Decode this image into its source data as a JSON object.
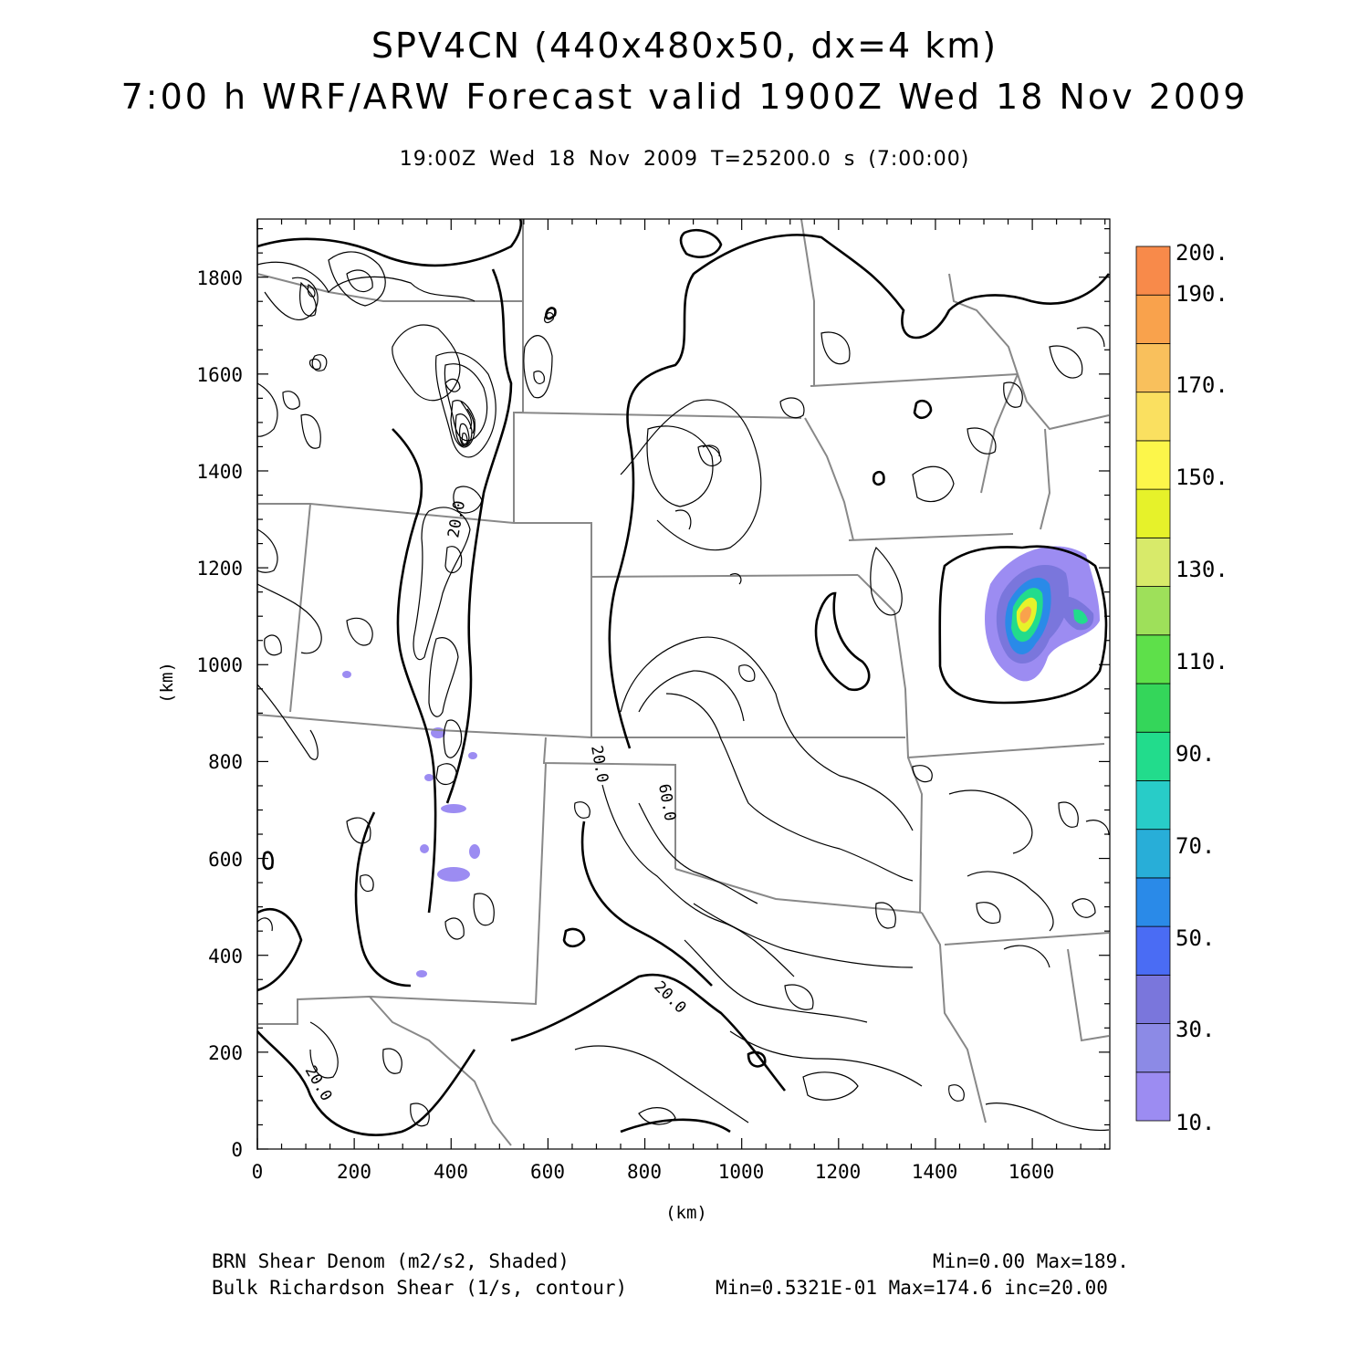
{
  "header": {
    "title": "SPV4CN (440x480x50, dx=4 km)",
    "subtitle": "7:00 h WRF/ARW Forecast valid 1900Z Wed 18 Nov 2009",
    "time_line": "19:00Z Wed 18 Nov 2009     T=25200.0 s (7:00:00)"
  },
  "map": {
    "xlabel": "(km)",
    "ylabel": "(km)",
    "xlim": [
      0,
      1760
    ],
    "ylim": [
      0,
      1920
    ],
    "x_ticks": [
      "0",
      "200",
      "400",
      "600",
      "800",
      "1000",
      "1200",
      "1400",
      "1600"
    ],
    "y_ticks": [
      "0",
      "200",
      "400",
      "600",
      "800",
      "1000",
      "1200",
      "1400",
      "1600",
      "1800"
    ],
    "contour_labels": [
      "20.0",
      "20.0",
      "60.0",
      "20.0",
      "20.0"
    ]
  },
  "colorbar": {
    "labels": [
      "10.",
      "30.",
      "50.",
      "70.",
      "90.",
      "110.",
      "130.",
      "150.",
      "170.",
      "190.",
      "200."
    ],
    "colors": [
      "#9c8cf2",
      "#8c8ae6",
      "#7a76dc",
      "#4a6cf4",
      "#2a8ae8",
      "#28aed8",
      "#28ccc8",
      "#22dc8c",
      "#34d65a",
      "#5ee04a",
      "#9ee05a",
      "#d8ea6a",
      "#e6f22a",
      "#fcf64a",
      "#fae060",
      "#f9c05c",
      "#f9a24c",
      "#f88a4a"
    ]
  },
  "footer": {
    "shade_desc": "BRN Shear Denom (m2/s2, Shaded)",
    "shade_stats": "Min=0.00 Max=189.",
    "contour_desc": "Bulk Richardson Shear (1/s, contour)",
    "contour_stats": "Min=0.5321E-01 Max=174.6 inc=20.00"
  },
  "chart_data": {
    "type": "heatmap",
    "title": "SPV4CN (440x480x50, dx=4 km)",
    "xlabel": "(km)",
    "ylabel": "(km)",
    "xlim": [
      0,
      1760
    ],
    "ylim": [
      0,
      1920
    ],
    "shaded_field": "BRN Shear Denom (m2/s2, Shaded)",
    "contour_field": "Bulk Richardson Shear (1/s, contour)",
    "shaded_min": 0.0,
    "shaded_max": 189,
    "contour_min": 0.05321,
    "contour_max": 174.6,
    "contour_interval": 20.0,
    "colorbar_levels": [
      10,
      20,
      30,
      40,
      50,
      60,
      70,
      80,
      90,
      100,
      110,
      120,
      130,
      140,
      150,
      160,
      170,
      180,
      190,
      200
    ]
  }
}
